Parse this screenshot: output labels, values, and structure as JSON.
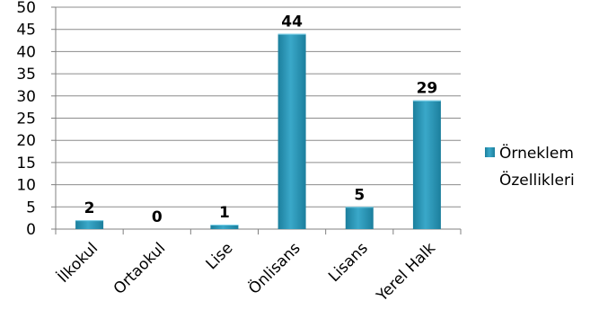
{
  "chart_data": {
    "type": "bar",
    "categories": [
      "İlkokul",
      "Ortaokul",
      "Lise",
      "Önlisans",
      "Lisans",
      "Yerel Halk"
    ],
    "series": [
      {
        "name": "Örneklem Özellikleri",
        "values": [
          2,
          0,
          1,
          44,
          5,
          29
        ]
      }
    ],
    "data_labels": [
      "2",
      "0",
      "1",
      "44",
      "5",
      "29"
    ],
    "yticks": [
      "0",
      "5",
      "10",
      "15",
      "20",
      "25",
      "30",
      "35",
      "40",
      "45",
      "50"
    ],
    "ylim": [
      0,
      50
    ],
    "grid": true,
    "legend": {
      "position": "right",
      "lines": [
        "Örneklem",
        "Özellikleri"
      ]
    },
    "colors": {
      "bar": "#3aa8c9",
      "bar_dark": "#1c7f9d",
      "grid": "#8c8c8c",
      "axis": "#808080"
    }
  }
}
